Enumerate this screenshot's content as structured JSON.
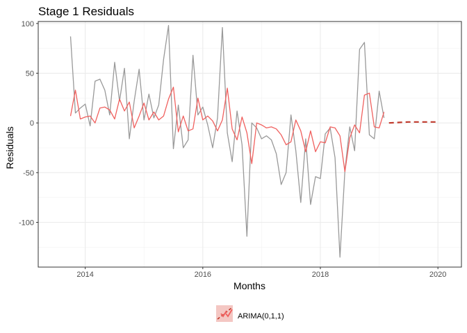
{
  "chart_data": {
    "type": "line",
    "title": "Stage 1 Residuals",
    "xlabel": "Months",
    "ylabel": "Residuals",
    "xlim": [
      2013.2,
      2020.4
    ],
    "ylim": [
      -145,
      102
    ],
    "x_ticks": [
      2014,
      2016,
      2018,
      2020
    ],
    "x_tick_labels": [
      "2014",
      "2016",
      "2018",
      "2020"
    ],
    "y_ticks": [
      -100,
      -50,
      0,
      50,
      100
    ],
    "y_tick_labels": [
      "-100",
      "-50",
      "0",
      "50",
      "100"
    ],
    "grid": true,
    "legend": {
      "position": "bottom",
      "entries": [
        "ARIMA(0,1,1)"
      ]
    },
    "colors": {
      "observed": "#999999",
      "fitted": "#F0605E",
      "forecast": "#C0392B",
      "legend_fill": "#F4C7C3"
    },
    "series": [
      {
        "role": "observed",
        "x": [
          2013.75,
          2013.833,
          2013.917,
          2014.0,
          2014.083,
          2014.167,
          2014.25,
          2014.333,
          2014.417,
          2014.5,
          2014.583,
          2014.667,
          2014.75,
          2014.833,
          2014.917,
          2015.0,
          2015.083,
          2015.167,
          2015.25,
          2015.333,
          2015.417,
          2015.5,
          2015.583,
          2015.667,
          2015.75,
          2015.833,
          2015.917,
          2016.0,
          2016.083,
          2016.167,
          2016.25,
          2016.333,
          2016.417,
          2016.5,
          2016.583,
          2016.667,
          2016.75,
          2016.833,
          2016.917,
          2017.0,
          2017.083,
          2017.167,
          2017.25,
          2017.333,
          2017.417,
          2017.5,
          2017.583,
          2017.667,
          2017.75,
          2017.833,
          2017.917,
          2018.0,
          2018.083,
          2018.167,
          2018.25,
          2018.333,
          2018.417,
          2018.5,
          2018.583,
          2018.667,
          2018.75,
          2018.833,
          2018.917,
          2019.0,
          2019.083
        ],
        "values": [
          87,
          10,
          15,
          19,
          -3,
          42,
          44,
          33,
          8,
          61,
          22,
          55,
          -16,
          22,
          54,
          3,
          29,
          5,
          18,
          64,
          98,
          -26,
          18,
          -25,
          -17,
          68,
          8,
          16,
          -2,
          -25,
          5,
          96,
          -10,
          -39,
          12,
          -22,
          -114,
          0,
          -5,
          -16,
          -13,
          -17,
          -31,
          -62,
          -50,
          8,
          -28,
          -80,
          -16,
          -82,
          -54,
          -56,
          -11,
          -5,
          -35,
          -135,
          -48,
          -4,
          -28,
          74,
          81,
          -12,
          -16,
          32,
          5
        ]
      },
      {
        "role": "fitted",
        "x": [
          2013.75,
          2013.833,
          2013.917,
          2014.0,
          2014.083,
          2014.167,
          2014.25,
          2014.333,
          2014.417,
          2014.5,
          2014.583,
          2014.667,
          2014.75,
          2014.833,
          2014.917,
          2015.0,
          2015.083,
          2015.167,
          2015.25,
          2015.333,
          2015.417,
          2015.5,
          2015.583,
          2015.667,
          2015.75,
          2015.833,
          2015.917,
          2016.0,
          2016.083,
          2016.167,
          2016.25,
          2016.333,
          2016.417,
          2016.5,
          2016.583,
          2016.667,
          2016.75,
          2016.833,
          2016.917,
          2017.0,
          2017.083,
          2017.167,
          2017.25,
          2017.333,
          2017.417,
          2017.5,
          2017.583,
          2017.667,
          2017.75,
          2017.833,
          2017.917,
          2018.0,
          2018.083,
          2018.167,
          2018.25,
          2018.333,
          2018.417,
          2018.5,
          2018.583,
          2018.667,
          2018.75,
          2018.833,
          2018.917,
          2019.0,
          2019.083
        ],
        "values": [
          7,
          33,
          4,
          6,
          7,
          0,
          15,
          16,
          13,
          4,
          24,
          12,
          21,
          -5,
          7,
          20,
          3,
          11,
          3,
          7,
          24,
          36,
          -9,
          7,
          -8,
          -6,
          25,
          3,
          7,
          2,
          -8,
          3,
          35,
          -6,
          -17,
          6,
          -10,
          -41,
          0,
          -2,
          -5,
          -4,
          -6,
          -12,
          -22,
          -19,
          3,
          -8,
          -29,
          -8,
          -29,
          -19,
          -20,
          -4,
          -5,
          -13,
          -49,
          -15,
          -2,
          -10,
          28,
          30,
          -4,
          -5,
          11
        ]
      },
      {
        "role": "forecast",
        "x": [
          2019.167,
          2019.5,
          2019.75,
          2020.0
        ],
        "values": [
          0,
          1,
          1,
          1
        ]
      }
    ]
  }
}
